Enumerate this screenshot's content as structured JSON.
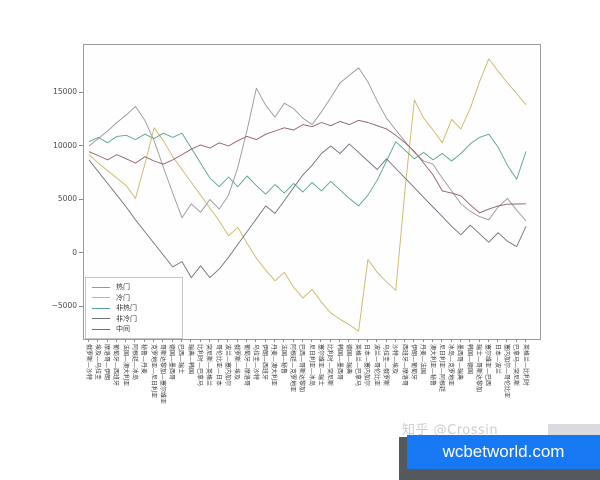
{
  "watermark": {
    "text": "知乎 @Crossin",
    "color": "#c9ccd1"
  },
  "banner": {
    "text": "wcbetworld.com",
    "bg_color": "#1678f2",
    "shadow_color": "#54595d",
    "text_color": "#ffffff"
  },
  "chart_data": {
    "type": "line",
    "title": "",
    "xlabel": "",
    "ylabel": "",
    "grid": false,
    "legend_position": "lower-left",
    "ylim": [
      -8600,
      19500
    ],
    "yticks": [
      15000,
      10000,
      5000,
      0,
      -5000
    ],
    "categories": [
      "俄罗斯—沙特",
      "埃及—乌拉圭",
      "摩洛哥—伊朗",
      "葡萄牙—西班牙",
      "法国—澳大利亚",
      "阿根廷—冰岛",
      "秘鲁—丹麦",
      "克罗地亚—尼日利亚",
      "哥斯达黎加—塞尔维亚",
      "德国—墨西哥",
      "巴西—瑞士",
      "瑞典—韩国",
      "比利时—巴拿马",
      "突尼斯—英格兰",
      "哥伦比亚—日本",
      "波兰—塞内加尔",
      "俄罗斯—埃及",
      "葡萄牙—摩洛哥",
      "乌拉圭—沙特",
      "伊朗—西班牙",
      "丹麦—澳大利亚",
      "法国—秘鲁",
      "阿根廷—克罗地亚",
      "巴西—哥斯达黎加",
      "尼日利亚—冰岛",
      "塞尔维亚—瑞士",
      "比利时—突尼斯",
      "韩国—墨西哥",
      "德国—瑞典",
      "英格兰—巴拿马",
      "日本—塞内加尔",
      "波兰—哥伦比亚",
      "乌拉圭—俄罗斯",
      "沙特—埃及",
      "西班牙—摩洛哥",
      "伊朗—葡萄牙",
      "丹麦—法国",
      "澳大利亚—秘鲁",
      "尼日利亚—阿根廷",
      "冰岛—克罗地亚",
      "墨西哥—瑞典",
      "韩国—德国",
      "瑞士—哥斯达黎加",
      "塞尔维亚—巴西",
      "日本—波兰",
      "塞内加尔—哥伦比亚",
      "巴拿马—突尼斯",
      "英格兰—比利时"
    ],
    "series": [
      {
        "name": "热门",
        "color": "#97979f",
        "values": [
          10000,
          10700,
          11400,
          12200,
          12900,
          13700,
          12400,
          10500,
          8000,
          5600,
          3300,
          4600,
          3800,
          5000,
          4100,
          5400,
          8000,
          11500,
          15400,
          13800,
          12700,
          14000,
          13500,
          12600,
          12000,
          13200,
          14500,
          15900,
          16600,
          17300,
          16000,
          14200,
          12600,
          11500,
          10400,
          9400,
          8600,
          8300,
          7000,
          5800,
          4600,
          3900,
          3400,
          3100,
          4300,
          5100,
          4000,
          3000
        ]
      },
      {
        "name": "冷门",
        "color": "#c9b864",
        "values": [
          9200,
          8400,
          7700,
          7000,
          6300,
          5100,
          8300,
          11700,
          10500,
          9000,
          7800,
          6600,
          5400,
          4200,
          3000,
          1600,
          2400,
          900,
          -500,
          -1600,
          -2600,
          -1800,
          -3200,
          -4200,
          -3400,
          -4600,
          -5600,
          -6200,
          -6700,
          -7300,
          -600,
          -1800,
          -2700,
          -3500,
          6000,
          14300,
          12600,
          11500,
          10300,
          12500,
          11600,
          13500,
          16000,
          18150,
          17000,
          15900,
          14900,
          13850
        ]
      },
      {
        "name": "非热门",
        "color": "#57a096",
        "values": [
          10400,
          10800,
          10300,
          10900,
          11000,
          10600,
          11100,
          10700,
          11200,
          10800,
          11200,
          9800,
          8400,
          7000,
          6200,
          7100,
          6200,
          7200,
          6300,
          5500,
          6400,
          5600,
          6500,
          5700,
          6600,
          5800,
          6700,
          5900,
          5100,
          4400,
          5400,
          6800,
          8600,
          10400,
          9600,
          8800,
          9400,
          8700,
          9300,
          8600,
          9300,
          10200,
          10800,
          11100,
          9900,
          8200,
          6900,
          9500
        ]
      },
      {
        "name": "非冷门",
        "color": "#70707e",
        "values": [
          8700,
          7600,
          6500,
          5400,
          4300,
          3100,
          2000,
          900,
          -200,
          -1300,
          -800,
          -2300,
          -1200,
          -2300,
          -1500,
          -400,
          800,
          2000,
          3200,
          4400,
          3700,
          4900,
          6100,
          7300,
          8200,
          9300,
          10000,
          9300,
          10200,
          9400,
          8600,
          7800,
          8800,
          7900,
          7000,
          6100,
          5200,
          4300,
          3400,
          2500,
          1700,
          2600,
          1800,
          1000,
          1900,
          1100,
          600,
          2500
        ]
      },
      {
        "name": "中间",
        "color": "#8f5f6b",
        "values": [
          9470,
          9100,
          8700,
          9200,
          8800,
          8400,
          9000,
          8600,
          8300,
          8700,
          9200,
          9700,
          10100,
          9800,
          10300,
          10000,
          10500,
          10900,
          10600,
          11100,
          11400,
          11700,
          11500,
          12000,
          11800,
          12200,
          11900,
          12300,
          12000,
          12400,
          12200,
          11900,
          11600,
          11000,
          10300,
          9500,
          8400,
          7300,
          5800,
          5600,
          5350,
          4500,
          3750,
          4100,
          4400,
          4560,
          4580,
          4600
        ]
      }
    ]
  }
}
